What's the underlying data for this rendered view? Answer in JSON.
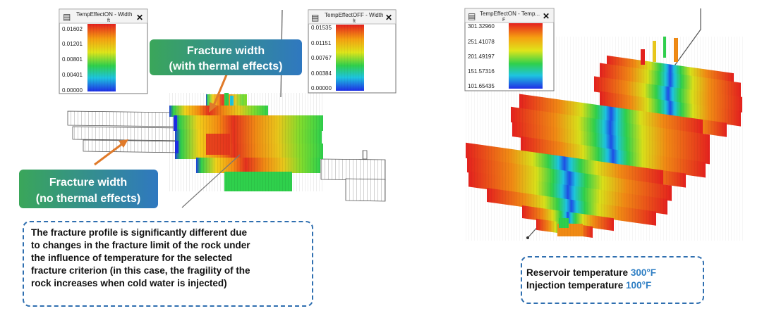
{
  "legends": {
    "width_on": {
      "title": "TempEffectON - Width",
      "unit": "ft",
      "ticks": [
        "0.01602",
        "0.01201",
        "0.00801",
        "0.00401",
        "0.00000"
      ]
    },
    "width_off": {
      "title": "TempEffectOFF - Width",
      "unit": "ft",
      "ticks": [
        "0.01535",
        "0.01151",
        "0.00767",
        "0.00384",
        "0.00000"
      ]
    },
    "temperature_on": {
      "title": "TempEffectON - Temp...",
      "unit": "F",
      "ticks": [
        "301.32960",
        "251.41078",
        "201.49197",
        "151.57316",
        "101.65435"
      ]
    }
  },
  "callouts": {
    "with_thermal": {
      "line1": "Fracture width",
      "line2": "(with thermal effects)"
    },
    "no_thermal": {
      "line1": "Fracture width",
      "line2": "(no thermal effects)"
    }
  },
  "notes": {
    "profile": {
      "lines": [
        "The fracture profile is significantly different due",
        "to changes in the fracture limit of the rock under",
        "the influence of temperature for the selected",
        "fracture criterion (in this case, the fragility of the",
        "rock increases when cold water is injected)"
      ]
    },
    "temperatures": {
      "reservoir_label": "Reservoir temperature",
      "reservoir_value": "300°F",
      "injection_label": "Injection temperature",
      "injection_value": "100°F"
    }
  },
  "close_glyph": "✕",
  "colors": {
    "callout_gradient_start": "#3aa65a",
    "callout_gradient_end": "#2f78c0",
    "note_border": "#2f6fb0",
    "arrow": "#e07a2a",
    "accent_blue": "#2f7fc4"
  }
}
